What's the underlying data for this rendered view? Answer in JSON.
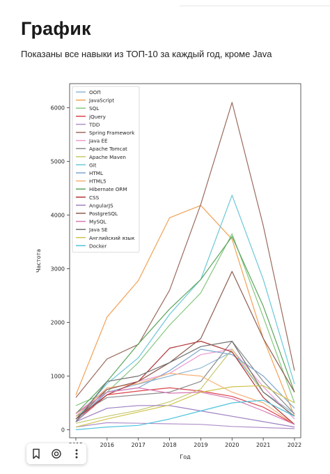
{
  "page": {
    "title": "График",
    "subtitle": "Показаны все навыки из ТОП-10 за каждый год, кроме Java"
  },
  "toolbar": {
    "icons": [
      "bookmark-icon",
      "camera-icon",
      "more-vertical-icon"
    ]
  },
  "chart_data": {
    "type": "line",
    "title": "",
    "xlabel": "Год",
    "ylabel": "Частота",
    "x": [
      2015,
      2016,
      2017,
      2018,
      2019,
      2020,
      2021,
      2022
    ],
    "xlim": [
      2014.8,
      2022.2
    ],
    "ylim": [
      -150,
      6450
    ],
    "yticks": [
      0,
      1000,
      2000,
      3000,
      4000,
      5000,
      6000
    ],
    "grid": false,
    "legend_position": "upper-left",
    "series": [
      {
        "name": "ООП",
        "color": "#8fb8d6",
        "values": [
          200,
          700,
          850,
          1000,
          1150,
          1450,
          700,
          300
        ]
      },
      {
        "name": "JavaScript",
        "color": "#f1a154",
        "values": [
          650,
          2100,
          2780,
          3950,
          4180,
          3550,
          1700,
          250
        ]
      },
      {
        "name": "SQL",
        "color": "#84c77f",
        "values": [
          450,
          700,
          1250,
          1950,
          2550,
          3650,
          2100,
          500
        ]
      },
      {
        "name": "jQuery",
        "color": "#d9444b",
        "values": [
          150,
          650,
          720,
          780,
          720,
          620,
          420,
          100
        ]
      },
      {
        "name": "TDD",
        "color": "#b08fc9",
        "values": [
          50,
          130,
          120,
          110,
          100,
          60,
          40,
          20
        ]
      },
      {
        "name": "Spring Framework",
        "color": "#9a6a5e",
        "values": [
          600,
          1320,
          1590,
          2600,
          4200,
          6100,
          3800,
          1100
        ]
      },
      {
        "name": "Java EE",
        "color": "#ec9ad0",
        "values": [
          300,
          750,
          900,
          1050,
          1400,
          1500,
          800,
          200
        ]
      },
      {
        "name": "Apache Tomcat",
        "color": "#8a8a8a",
        "values": [
          250,
          600,
          650,
          700,
          900,
          1650,
          900,
          300
        ]
      },
      {
        "name": "Apache Maven",
        "color": "#c5c96d",
        "values": [
          120,
          250,
          360,
          520,
          760,
          1500,
          700,
          250
        ]
      },
      {
        "name": "Git",
        "color": "#6ac7d8",
        "values": [
          200,
          860,
          1340,
          2150,
          2800,
          4370,
          2800,
          850
        ]
      },
      {
        "name": "HTML",
        "color": "#7fa6cf",
        "values": [
          150,
          700,
          780,
          1100,
          1500,
          1400,
          1000,
          400
        ]
      },
      {
        "name": "HTML5",
        "color": "#f6b077",
        "values": [
          250,
          780,
          860,
          1050,
          1000,
          700,
          500,
          100
        ]
      },
      {
        "name": "Hibernate ORM",
        "color": "#5ba55c",
        "values": [
          300,
          900,
          1600,
          2250,
          2800,
          3600,
          2300,
          700
        ]
      },
      {
        "name": "CSS",
        "color": "#b03434",
        "values": [
          200,
          650,
          900,
          1520,
          1650,
          1450,
          600,
          100
        ]
      },
      {
        "name": "AngularJS",
        "color": "#9d7fc2",
        "values": [
          150,
          400,
          450,
          450,
          350,
          250,
          150,
          50
        ]
      },
      {
        "name": "PostgreSQL",
        "color": "#8e5b4f",
        "values": [
          200,
          750,
          900,
          1250,
          1700,
          2950,
          1700,
          700
        ]
      },
      {
        "name": "MySQL",
        "color": "#d879b4",
        "values": [
          300,
          700,
          780,
          680,
          700,
          580,
          350,
          100
        ]
      },
      {
        "name": "Java SE",
        "color": "#6f6f6f",
        "values": [
          150,
          900,
          1000,
          1250,
          1550,
          1650,
          700,
          250
        ]
      },
      {
        "name": "Английский язык",
        "color": "#cfc44f",
        "values": [
          50,
          200,
          330,
          460,
          700,
          800,
          820,
          500
        ]
      },
      {
        "name": "Docker",
        "color": "#4ec3dc",
        "values": [
          0,
          50,
          80,
          200,
          350,
          500,
          550,
          250
        ]
      }
    ]
  }
}
